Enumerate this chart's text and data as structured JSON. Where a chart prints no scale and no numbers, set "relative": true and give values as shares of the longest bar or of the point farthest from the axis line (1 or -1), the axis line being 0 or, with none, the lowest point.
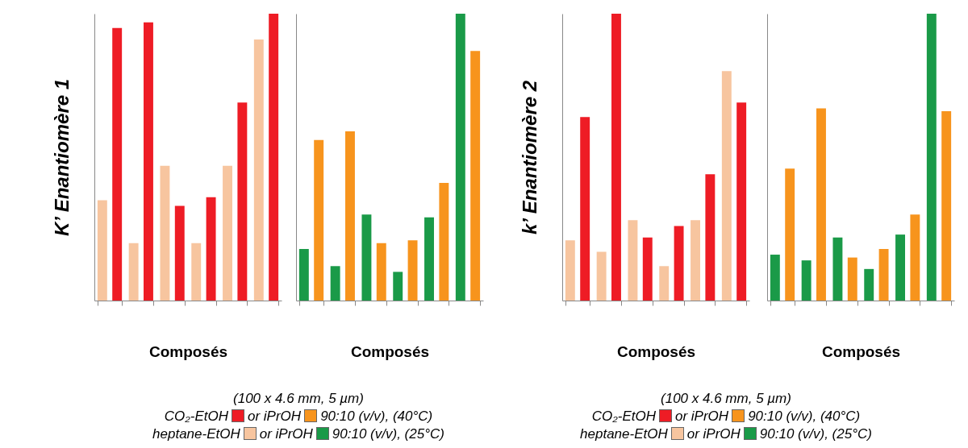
{
  "chart_data": [
    {
      "type": "bar",
      "relative": true,
      "ylabel": "K’ Enantiomère 1",
      "xlabel": "Composés",
      "categories": [
        null,
        null,
        null,
        null,
        null,
        null
      ],
      "series": [
        {
          "color": "#f7c59f",
          "values": [
            0.35,
            0.2,
            0.47,
            0.2,
            0.47,
            0.91
          ]
        },
        {
          "color": "#ee1c25",
          "values": [
            0.95,
            0.97,
            0.33,
            0.36,
            0.69,
            1
          ]
        }
      ],
      "annotations": [
        "(100 x 4.6 mm, 5 µm)",
        "CO₂-EtOH",
        "or iPrOH",
        "90:10 (v/v), (40°C)",
        "heptane-EtOH",
        "or iPrOH",
        "90:10 (v/v), (25°C)"
      ]
    },
    {
      "type": "bar",
      "relative": true,
      "xlabel": "Composés",
      "categories": [
        null,
        null,
        null,
        null,
        null,
        null
      ],
      "series": [
        {
          "color": "#1a9a48",
          "values": [
            0.18,
            0.12,
            0.3,
            0.1,
            0.29,
            1
          ]
        },
        {
          "color": "#f7941d",
          "values": [
            0.56,
            0.59,
            0.2,
            0.21,
            0.41,
            0.87
          ]
        }
      ]
    },
    {
      "type": "bar",
      "relative": true,
      "ylabel": "k’ Enantiomère 2",
      "xlabel": "Composés",
      "categories": [
        null,
        null,
        null,
        null,
        null,
        null
      ],
      "series": [
        {
          "color": "#f7c59f",
          "values": [
            0.21,
            0.17,
            0.28,
            0.12,
            0.28,
            0.8
          ]
        },
        {
          "color": "#ee1c25",
          "values": [
            0.64,
            1,
            0.22,
            0.26,
            0.44,
            0.69
          ]
        }
      ],
      "annotations": [
        "(100 x 4.6 mm, 5 µm)",
        "CO₂-EtOH",
        "or iPrOH",
        "90:10 (v/v), (40°C)",
        "heptane-EtOH",
        "or iPrOH",
        "90:10 (v/v), (25°C)"
      ]
    },
    {
      "type": "bar",
      "relative": true,
      "xlabel": "Composés",
      "categories": [
        null,
        null,
        null,
        null,
        null,
        null
      ],
      "series": [
        {
          "color": "#1a9a48",
          "values": [
            0.16,
            0.14,
            0.22,
            0.11,
            0.23,
            1
          ]
        },
        {
          "color": "#f7941d",
          "values": [
            0.46,
            0.67,
            0.15,
            0.18,
            0.3,
            0.66
          ]
        }
      ]
    }
  ]
}
